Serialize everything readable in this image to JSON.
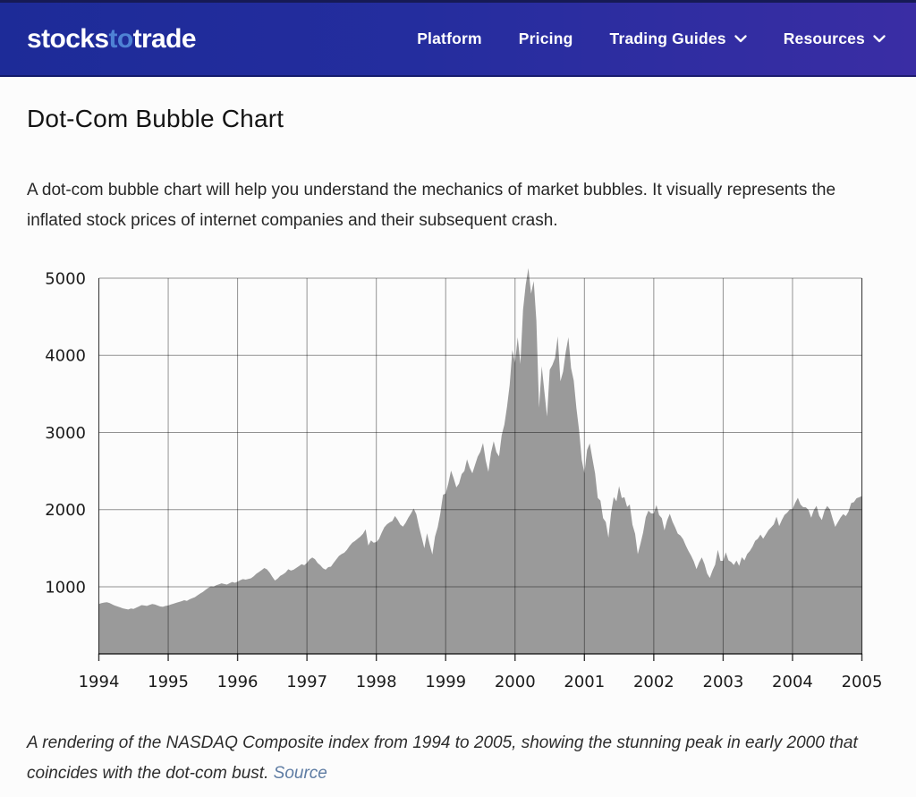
{
  "header": {
    "logo": {
      "part1": "stocks",
      "part2": "to",
      "part3": "trade",
      "accent_color": "#4e82d4"
    },
    "nav": [
      {
        "label": "Platform",
        "has_dropdown": false
      },
      {
        "label": "Pricing",
        "has_dropdown": false
      },
      {
        "label": "Trading Guides",
        "has_dropdown": true
      },
      {
        "label": "Resources",
        "has_dropdown": true
      }
    ],
    "colors": {
      "bg_left": "#1d2b98",
      "bg_right": "#3a2da4",
      "text": "#ffffff"
    }
  },
  "page": {
    "title": "Dot-Com Bubble Chart",
    "intro": "A dot-com bubble chart will help you understand the mechanics of market bubbles. It visually represents the inflated stock prices of internet companies and their subsequent crash.",
    "caption_text": "A rendering of the NASDAQ Composite index from 1994 to 2005, showing the stunning peak in early 2000 that coincides with the dot-com bust. ",
    "caption_link": "Source",
    "caption_link_color": "#5e7ca3"
  },
  "chart_data": {
    "type": "area",
    "series_name": "NASDAQ Composite",
    "x_start": 1994,
    "x_end": 2005,
    "points_per_year": 26,
    "x_tick_labels": [
      "1994",
      "1995",
      "1996",
      "1997",
      "1998",
      "1999",
      "2000",
      "2001",
      "2002",
      "2003",
      "2004",
      "2005"
    ],
    "y_ticks": [
      1000,
      2000,
      3000,
      4000,
      5000
    ],
    "ylim": [
      130,
      5000
    ],
    "peak_value": 5132,
    "grid": true,
    "legend": false,
    "fill_color": "#9a9a9a",
    "grid_color": "rgba(0,0,0,0.42)",
    "frame_color": "rgba(0,0,0,0.55)",
    "axis_color": "rgba(0,0,0,0.78)",
    "values": [
      776,
      788,
      795,
      800,
      790,
      772,
      756,
      745,
      733,
      720,
      712,
      705,
      718,
      712,
      728,
      745,
      762,
      758,
      752,
      765,
      777,
      770,
      758,
      744,
      740,
      752,
      758,
      770,
      781,
      793,
      802,
      812,
      825,
      817,
      838,
      852,
      865,
      890,
      912,
      933,
      960,
      985,
      1005,
      1001,
      1020,
      1032,
      1044,
      1036,
      1028,
      1046,
      1062,
      1052,
      1066,
      1085,
      1100,
      1092,
      1101,
      1110,
      1135,
      1168,
      1191,
      1215,
      1243,
      1225,
      1185,
      1130,
      1081,
      1105,
      1142,
      1160,
      1185,
      1227,
      1210,
      1221,
      1245,
      1268,
      1292,
      1280,
      1310,
      1355,
      1380,
      1358,
      1309,
      1280,
      1240,
      1222,
      1255,
      1261,
      1310,
      1355,
      1400,
      1425,
      1442,
      1480,
      1530,
      1570,
      1594,
      1623,
      1650,
      1686,
      1745,
      1535,
      1601,
      1570,
      1580,
      1619,
      1700,
      1771,
      1810,
      1835,
      1852,
      1917,
      1868,
      1805,
      1779,
      1830,
      1895,
      1950,
      2014,
      1940,
      1780,
      1640,
      1499,
      1694,
      1550,
      1419,
      1650,
      1771,
      1950,
      2193,
      2208,
      2340,
      2506,
      2406,
      2288,
      2338,
      2461,
      2500,
      2652,
      2543,
      2471,
      2580,
      2686,
      2750,
      2864,
      2638,
      2490,
      2739,
      2887,
      2746,
      2689,
      2966,
      3102,
      3336,
      3620,
      4069,
      3901,
      4235,
      3887,
      4590,
      4914,
      5132,
      4798,
      4963,
      4446,
      3321,
      3860,
      3529,
      3205,
      3813,
      3875,
      3966,
      4246,
      3663,
      3789,
      4042,
      4234,
      3835,
      3673,
      3316,
      3029,
      2645,
      2470,
      2773,
      2859,
      2660,
      2470,
      2152,
      2117,
      1890,
      1840,
      1638,
      1961,
      2163,
      2107,
      2305,
      2150,
      2161,
      2034,
      2066,
      1805,
      1687,
      1423,
      1556,
      1703,
      1903,
      1987,
      1950,
      1950,
      2059,
      1930,
      1890,
      1731,
      1860,
      1946,
      1845,
      1770,
      1688,
      1663,
      1616,
      1535,
      1463,
      1403,
      1328,
      1229,
      1315,
      1381,
      1295,
      1172,
      1114,
      1210,
      1287,
      1479,
      1336,
      1336,
      1446,
      1342,
      1321,
      1282,
      1340,
      1271,
      1384,
      1341,
      1425,
      1464,
      1520,
      1596,
      1623,
      1677,
      1623,
      1678,
      1735,
      1771,
      1810,
      1909,
      1787,
      1865,
      1932,
      1960,
      2003,
      2006,
      2088,
      2153,
      2066,
      2032,
      2030,
      1995,
      1896,
      1994,
      2049,
      1920,
      1865,
      1987,
      2048,
      2006,
      1887,
      1776,
      1838,
      1897,
      1942,
      1915,
      1975,
      2085,
      2097,
      2148,
      2160,
      2175
    ]
  }
}
